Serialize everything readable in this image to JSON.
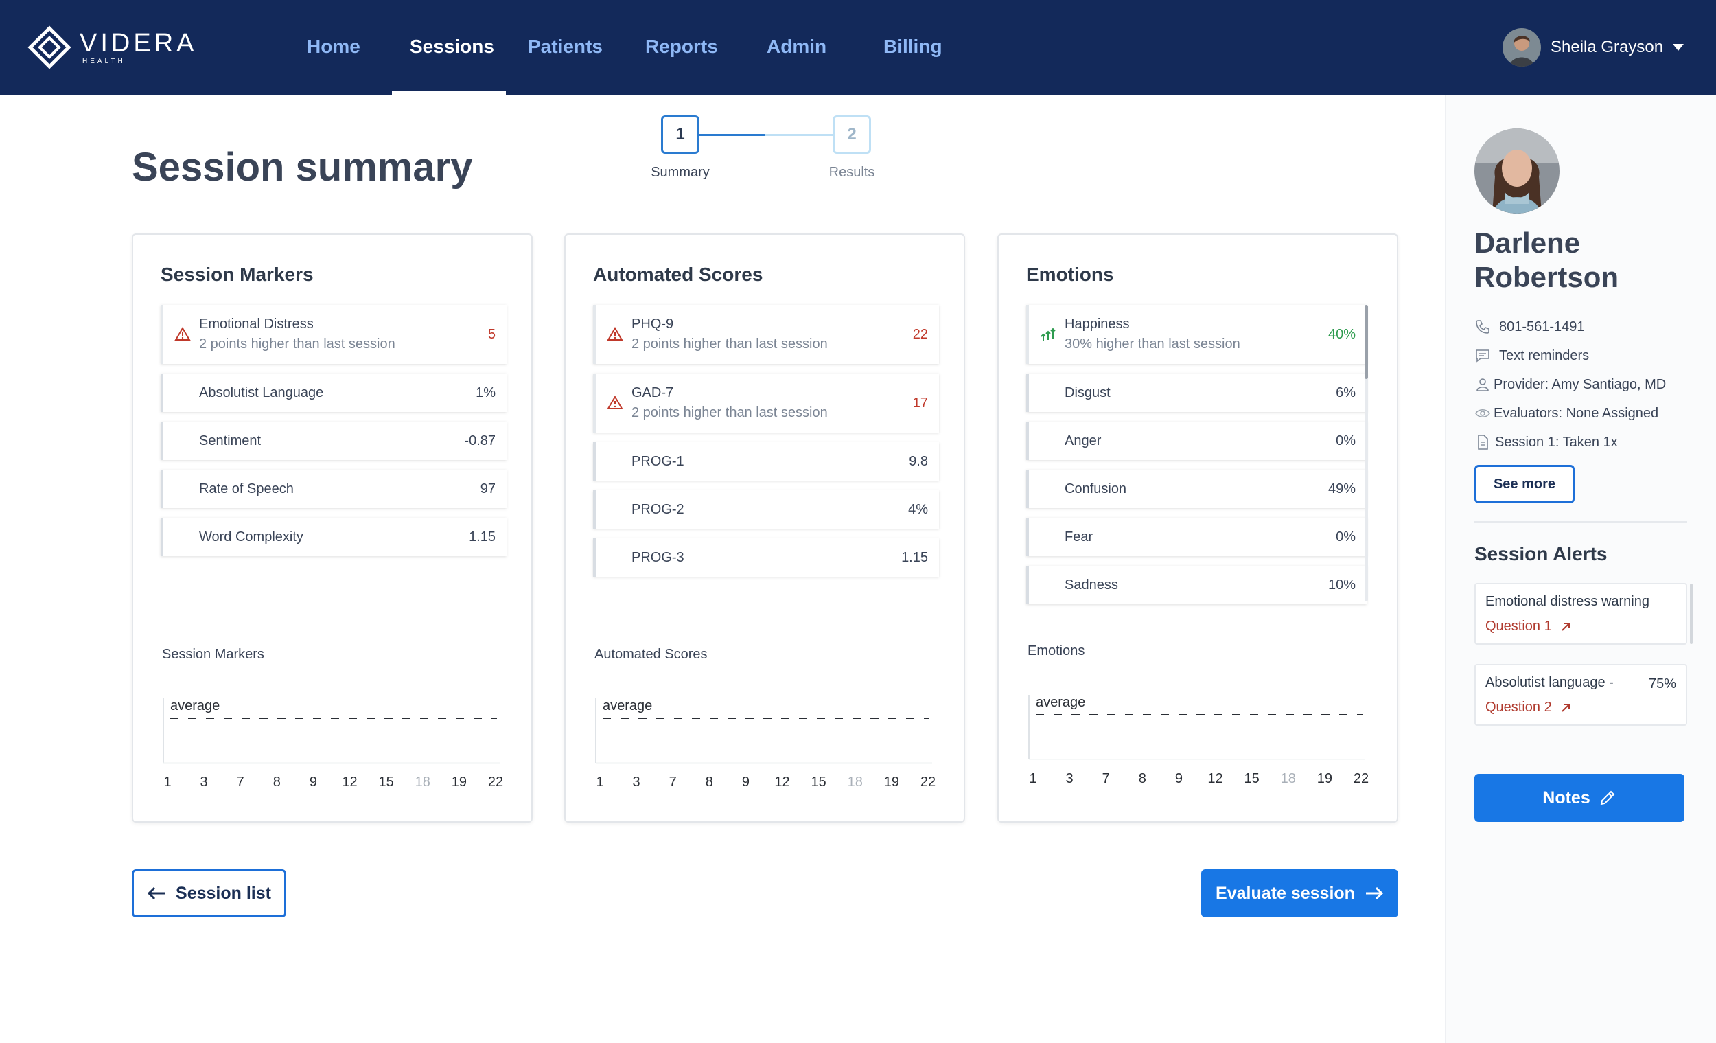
{
  "app": {
    "logo_name": "VIDERA",
    "logo_sub": "HEALTH"
  },
  "nav": {
    "items": [
      "Home",
      "Sessions",
      "Patients",
      "Reports",
      "Admin",
      "Billing"
    ],
    "active": "Sessions"
  },
  "user": {
    "name": "Sheila Grayson"
  },
  "page": {
    "title": "Session summary"
  },
  "stepper": [
    {
      "number": "1",
      "label": "Summary",
      "state": "active"
    },
    {
      "number": "2",
      "label": "Results",
      "state": "inactive"
    }
  ],
  "cards": {
    "session_markers": {
      "title": "Session Markers",
      "rows": [
        {
          "label": "Emotional Distress",
          "sub": "2 points higher than last session",
          "value": "5",
          "icon": "warning-icon"
        },
        {
          "label": "Absolutist Language",
          "value": "1%"
        },
        {
          "label": "Sentiment",
          "value": "-0.87"
        },
        {
          "label": "Rate of Speech",
          "value": "97"
        },
        {
          "label": "Word Complexity",
          "value": "1.15"
        }
      ],
      "chart_label": "Session Markers"
    },
    "automated_scores": {
      "title": "Automated Scores",
      "rows": [
        {
          "label": "PHQ-9",
          "sub": "2 points higher than last session",
          "value": "22",
          "icon": "warning-icon"
        },
        {
          "label": "GAD-7",
          "sub": "2 points higher than last session",
          "value": "17",
          "icon": "warning-icon"
        },
        {
          "label": "PROG-1",
          "value": "9.8"
        },
        {
          "label": "PROG-2",
          "value": "4%"
        },
        {
          "label": "PROG-3",
          "value": "1.15"
        }
      ],
      "chart_label": "Automated Scores"
    },
    "emotions": {
      "title": "Emotions",
      "rows": [
        {
          "label": "Happiness",
          "sub": "30% higher than last session",
          "value": "40%",
          "icon": "trend-up-icon"
        },
        {
          "label": "Disgust",
          "value": "6%"
        },
        {
          "label": "Anger",
          "value": "0%"
        },
        {
          "label": "Confusion",
          "value": "49%"
        },
        {
          "label": "Fear",
          "value": "0%"
        },
        {
          "label": "Sadness",
          "value": "10%"
        }
      ],
      "chart_label": "Emotions"
    }
  },
  "chart_data": [
    {
      "type": "line",
      "title": "Session Markers",
      "categories": [
        "1",
        "3",
        "7",
        "8",
        "9",
        "12",
        "15",
        "18",
        "19",
        "22"
      ],
      "muted_category": "18",
      "series": [],
      "reference_line": {
        "label": "average",
        "style": "dashed"
      },
      "grid": false
    },
    {
      "type": "line",
      "title": "Automated Scores",
      "categories": [
        "1",
        "3",
        "7",
        "8",
        "9",
        "12",
        "15",
        "18",
        "19",
        "22"
      ],
      "muted_category": "18",
      "series": [],
      "reference_line": {
        "label": "average",
        "style": "dashed"
      },
      "grid": false
    },
    {
      "type": "line",
      "title": "Emotions",
      "categories": [
        "1",
        "3",
        "7",
        "8",
        "9",
        "12",
        "15",
        "18",
        "19",
        "22"
      ],
      "muted_category": "18",
      "series": [],
      "reference_line": {
        "label": "average",
        "style": "dashed"
      },
      "grid": false
    }
  ],
  "buttons": {
    "session_list": "Session list",
    "evaluate": "Evaluate session"
  },
  "patient": {
    "name": "Darlene Robertson",
    "phone": "801-561-1491",
    "reminders": "Text reminders",
    "provider": "Provider: Amy Santiago, MD",
    "evaluators": "Evaluators: None Assigned",
    "session": "Session 1: Taken 1x",
    "see_more": "See more"
  },
  "alerts": {
    "title": "Session Alerts",
    "items": [
      {
        "title": "Emotional distress warning",
        "link": "Question 1",
        "pct": ""
      },
      {
        "title": "Absolutist language -",
        "link": "Question 2",
        "pct": "75%"
      }
    ]
  },
  "notes_label": "Notes",
  "colors": {
    "nav_bg": "#13295a",
    "primary": "#1877e5",
    "warning": "#c0392b",
    "positive": "#2e9b4f",
    "link_inactive": "#8fb8f5"
  }
}
